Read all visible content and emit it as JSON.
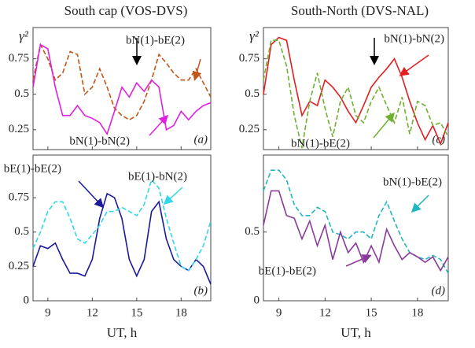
{
  "chart_data": [
    {
      "type": "line",
      "title": "South cap (VOS-DVS)",
      "ylabel": "γ²",
      "annotation": "(a)",
      "x": [
        8,
        8.5,
        9,
        9.5,
        10,
        10.5,
        11,
        11.5,
        12,
        12.5,
        13,
        13.5,
        14,
        14.5,
        15,
        15.5,
        16,
        16.5,
        17,
        17.5,
        18,
        18.5,
        19,
        19.5,
        20
      ],
      "xlim": [
        8,
        20
      ],
      "xticks": [
        9,
        12,
        15,
        18
      ],
      "ylim": [
        0.11,
        0.97
      ],
      "yticks": [
        0.25,
        0.5,
        0.75
      ],
      "series": [
        {
          "name": "bN(1)-bE(2)",
          "color": "#c0561a",
          "linestyle": "dashed",
          "values": [
            0.6,
            0.85,
            0.75,
            0.6,
            0.65,
            0.8,
            0.78,
            0.5,
            0.55,
            0.68,
            0.55,
            0.4,
            0.35,
            0.32,
            0.35,
            0.45,
            0.6,
            0.78,
            0.72,
            0.65,
            0.6,
            0.6,
            0.68,
            0.58,
            0.48
          ]
        },
        {
          "name": "bN(1)-bN(2)",
          "color": "#e020e0",
          "linestyle": "solid",
          "values": [
            0.55,
            0.85,
            0.82,
            0.55,
            0.35,
            0.35,
            0.42,
            0.35,
            0.33,
            0.3,
            0.22,
            0.38,
            0.55,
            0.48,
            0.58,
            0.52,
            0.6,
            0.55,
            0.25,
            0.28,
            0.38,
            0.32,
            0.38,
            0.42,
            0.44
          ]
        }
      ]
    },
    {
      "type": "line",
      "xlabel": "UT, h",
      "annotation": "(b)",
      "x": [
        8,
        8.5,
        9,
        9.5,
        10,
        10.5,
        11,
        11.5,
        12,
        12.5,
        13,
        13.5,
        14,
        14.5,
        15,
        15.5,
        16,
        16.5,
        17,
        17.5,
        18,
        18.5,
        19,
        19.5,
        20
      ],
      "xlim": [
        8,
        20
      ],
      "xticks": [
        9,
        12,
        15,
        18
      ],
      "ylim": [
        0,
        1.06
      ],
      "yticks": [
        0,
        0.25,
        0.5,
        0.75
      ],
      "series": [
        {
          "name": "bE(1)-bE(2)",
          "color": "#1a1a9a",
          "linestyle": "solid",
          "values": [
            0.25,
            0.4,
            0.38,
            0.42,
            0.3,
            0.2,
            0.2,
            0.18,
            0.3,
            0.6,
            0.78,
            0.75,
            0.6,
            0.3,
            0.18,
            0.3,
            0.65,
            0.72,
            0.45,
            0.3,
            0.25,
            0.22,
            0.3,
            0.25,
            0.12
          ]
        },
        {
          "name": "bE(1)-bN(2)",
          "color": "#30d8e8",
          "linestyle": "dashed",
          "values": [
            0.38,
            0.5,
            0.65,
            0.72,
            0.72,
            0.6,
            0.45,
            0.42,
            0.48,
            0.55,
            0.65,
            0.65,
            0.68,
            0.65,
            0.62,
            0.7,
            0.88,
            0.82,
            0.6,
            0.42,
            0.25,
            0.22,
            0.3,
            0.4,
            0.58
          ]
        }
      ]
    },
    {
      "type": "line",
      "title": "South-North (DVS-NAL)",
      "ylabel": "γ²",
      "annotation": "(c)",
      "x": [
        8,
        8.5,
        9,
        9.5,
        10,
        10.5,
        11,
        11.5,
        12,
        12.5,
        13,
        13.5,
        14,
        14.5,
        15,
        15.5,
        16,
        16.5,
        17,
        17.5,
        18,
        18.5,
        19,
        19.5,
        20
      ],
      "xlim": [
        8,
        20
      ],
      "xticks": [
        9,
        12,
        15,
        18
      ],
      "ylim": [
        0.11,
        0.97
      ],
      "yticks": [
        0.25,
        0.5,
        0.75
      ],
      "series": [
        {
          "name": "bN(1)-bN(2)",
          "color": "#e02020",
          "linestyle": "solid",
          "values": [
            0.5,
            0.85,
            0.9,
            0.88,
            0.6,
            0.35,
            0.45,
            0.42,
            0.6,
            0.55,
            0.48,
            0.38,
            0.3,
            0.42,
            0.55,
            0.62,
            0.68,
            0.75,
            0.62,
            0.45,
            0.3,
            0.18,
            0.28,
            0.15,
            0.3
          ]
        },
        {
          "name": "bN(1)-bE(2)",
          "color": "#70b030",
          "linestyle": "dashed",
          "values": [
            0.6,
            0.88,
            0.88,
            0.7,
            0.35,
            0.12,
            0.45,
            0.65,
            0.4,
            0.2,
            0.45,
            0.55,
            0.35,
            0.3,
            0.45,
            0.55,
            0.42,
            0.3,
            0.48,
            0.22,
            0.45,
            0.42,
            0.28,
            0.3,
            0.2
          ]
        }
      ]
    },
    {
      "type": "line",
      "xlabel": "UT, h",
      "annotation": "(d)",
      "x": [
        8,
        8.5,
        9,
        9.5,
        10,
        10.5,
        11,
        11.5,
        12,
        12.5,
        13,
        13.5,
        14,
        14.5,
        15,
        15.5,
        16,
        16.5,
        17,
        17.5,
        18,
        18.5,
        19,
        19.5,
        20
      ],
      "xlim": [
        8,
        20
      ],
      "xticks": [
        9,
        12,
        15,
        18
      ],
      "ylim": [
        0,
        1.06
      ],
      "yticks": [
        0,
        0.5
      ],
      "series": [
        {
          "name": "bN(1)-bE(2)",
          "color": "#20b8c0",
          "linestyle": "dashed",
          "values": [
            0.8,
            0.95,
            0.95,
            0.88,
            0.7,
            0.62,
            0.62,
            0.68,
            0.65,
            0.5,
            0.48,
            0.45,
            0.5,
            0.5,
            0.45,
            0.62,
            0.72,
            0.58,
            0.45,
            0.35,
            0.32,
            0.3,
            0.33,
            0.3,
            0.2
          ]
        },
        {
          "name": "bE(1)-bE(2)",
          "color": "#8a3a9a",
          "linestyle": "solid",
          "values": [
            0.55,
            0.8,
            0.8,
            0.62,
            0.6,
            0.45,
            0.58,
            0.4,
            0.55,
            0.3,
            0.5,
            0.35,
            0.42,
            0.28,
            0.4,
            0.28,
            0.52,
            0.4,
            0.3,
            0.35,
            0.32,
            0.28,
            0.32,
            0.22,
            0.32
          ]
        }
      ]
    }
  ]
}
